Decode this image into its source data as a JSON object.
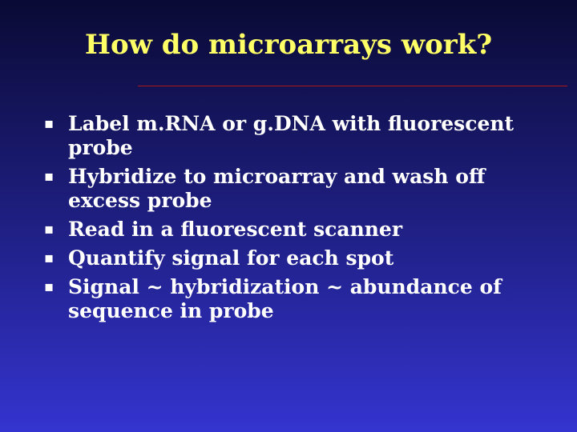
{
  "title": "How do microarrays work?",
  "bullets": [
    "Label m.RNA or g.DNA with fluorescent probe",
    "Hybridize to microarray and wash off excess probe",
    "Read in a fluorescent scanner",
    "Quantify signal for each spot",
    "Signal ~ hybridization ~ abundance of sequence in probe"
  ]
}
